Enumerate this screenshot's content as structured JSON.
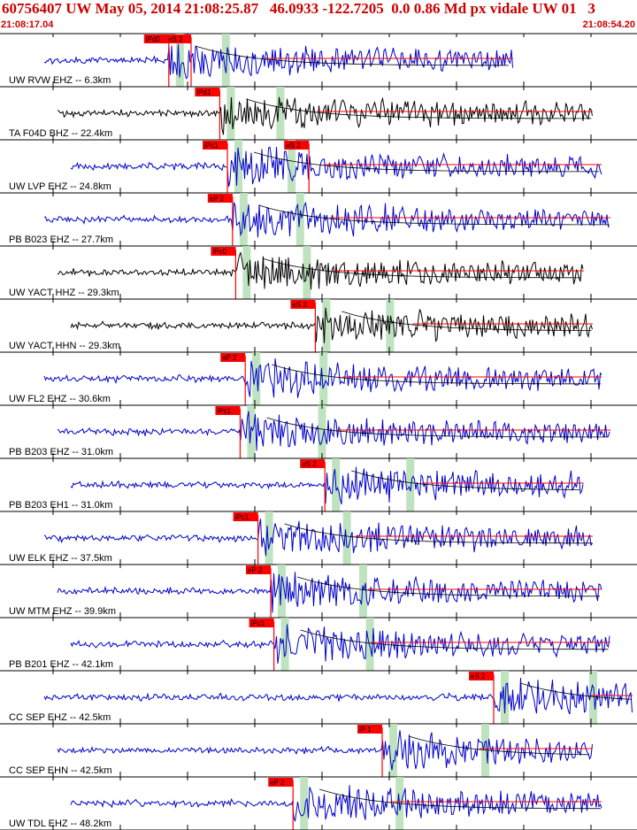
{
  "header": {
    "title": "60756407 UW May 05, 2014 21:08:25.87   46.0933 -122.7205  0.0 0.86 Md px vidale UW 01   3",
    "start_time": "21:08:17.04",
    "end_time": "21:08:54.20"
  },
  "colors": {
    "header_text": "#cc0000",
    "pick_box": "#ff0000",
    "trace_blue": "#0000cc",
    "trace_black": "#000000",
    "window_green": "#b8e0b8"
  },
  "chart_data": {
    "type": "line",
    "title": "60756407 UW May 05, 2014 21:08:25.87   46.0933 -122.7205  0.0 0.86 Md px vidale UW 01   3",
    "x_start": "21:08:17.04",
    "x_end": "21:08:54.20",
    "traces": [
      {
        "label": "UW RVW EHZ -- 6.3km",
        "color": "blue",
        "picks": [
          {
            "label": "iPd0",
            "t": 0.265
          },
          {
            "label": "eS 2",
            "t": 0.3
          }
        ]
      },
      {
        "label": "TA F04D BHZ -- 22.4km",
        "color": "black",
        "picks": [
          {
            "label": "iPd1",
            "t": 0.345
          }
        ]
      },
      {
        "label": "UW LVP EHZ -- 24.8km",
        "color": "blue",
        "picks": [
          {
            "label": "iPc1",
            "t": 0.357
          },
          {
            "label": "eS 2",
            "t": 0.485
          }
        ]
      },
      {
        "label": "PB B023 EHZ -- 27.7km",
        "color": "blue",
        "picks": [
          {
            "label": "eP 2",
            "t": 0.365
          }
        ]
      },
      {
        "label": "UW YACT HHZ -- 29.3km",
        "color": "black",
        "picks": [
          {
            "label": "iPc0",
            "t": 0.37
          }
        ]
      },
      {
        "label": "UW YACT HHN -- 29.3km",
        "color": "black",
        "picks": [
          {
            "label": "eS 2",
            "t": 0.495
          }
        ]
      },
      {
        "label": "UW FL2 EHZ -- 30.6km",
        "color": "blue",
        "picks": [
          {
            "label": "eP 2",
            "t": 0.385
          }
        ]
      },
      {
        "label": "PB B203 EHZ -- 31.0km",
        "color": "blue",
        "picks": [
          {
            "label": "iPc1",
            "t": 0.377
          }
        ]
      },
      {
        "label": "PB B203 EH1 -- 31.0km",
        "color": "blue",
        "picks": [
          {
            "label": "eS 2",
            "t": 0.51
          }
        ]
      },
      {
        "label": "UW ELK EHZ -- 37.5km",
        "color": "blue",
        "picks": [
          {
            "label": "iPc1",
            "t": 0.405
          }
        ]
      },
      {
        "label": "UW MTM EHZ -- 39.9km",
        "color": "blue",
        "picks": [
          {
            "label": "eP 2",
            "t": 0.425
          }
        ]
      },
      {
        "label": "PB B201 EHZ -- 42.1km",
        "color": "blue",
        "picks": [
          {
            "label": "iPc1",
            "t": 0.43
          }
        ]
      },
      {
        "label": "CC SEP EHZ -- 42.5km",
        "color": "blue",
        "picks": [
          {
            "label": "eS 2",
            "t": 0.775
          }
        ]
      },
      {
        "label": "CC SEP EHN -- 42.5km",
        "color": "blue",
        "picks": [
          {
            "label": "iP 1",
            "t": 0.6
          }
        ]
      },
      {
        "label": "UW TDL EHZ -- 48.2km",
        "color": "blue",
        "picks": [
          {
            "label": "eP 2",
            "t": 0.46
          }
        ]
      }
    ]
  }
}
